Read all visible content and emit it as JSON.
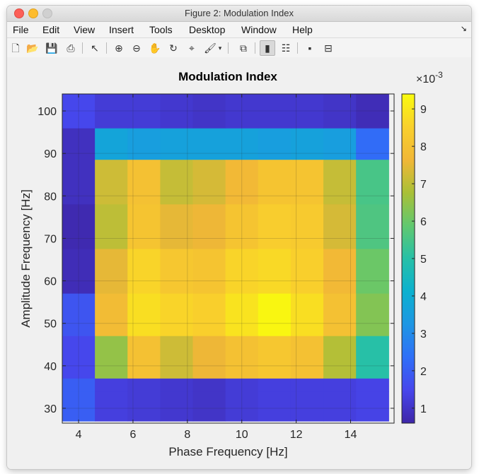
{
  "window": {
    "title": "Figure 2: Modulation Index"
  },
  "menu": {
    "items": [
      "File",
      "Edit",
      "View",
      "Insert",
      "Tools",
      "Desktop",
      "Window",
      "Help"
    ]
  },
  "toolbar": {
    "icons": [
      "new-figure-icon",
      "open-folder-icon",
      "save-icon",
      "print-icon",
      "pointer-icon",
      "zoom-in-icon",
      "zoom-out-icon",
      "pan-hand-icon",
      "rotate-3d-icon",
      "data-cursor-icon",
      "brush-icon",
      "brush-dropdown-icon",
      "link-plot-icon",
      "colorbar-icon",
      "legend-icon",
      "hide-plot-tools-icon",
      "show-plot-tools-icon"
    ]
  },
  "chart_data": {
    "type": "heatmap",
    "title": "Modulation Index",
    "xlabel": "Phase Frequency [Hz]",
    "ylabel": "Amplitude Frequency [Hz]",
    "x_centers": [
      4,
      5.2,
      6.4,
      7.6,
      8.8,
      10,
      11.2,
      12.4,
      13.6,
      14.8
    ],
    "x_cell_width": 1.2,
    "y_centers": [
      102,
      92,
      82,
      72,
      62,
      52,
      42,
      32
    ],
    "y_cell_height": 10,
    "y_row_edges": [
      [
        97,
        104
      ],
      [
        88.5,
        96
      ],
      [
        78,
        88.5
      ],
      [
        67.5,
        78
      ],
      [
        57,
        67.5
      ],
      [
        47,
        57
      ],
      [
        37,
        47
      ],
      [
        27,
        34
      ]
    ],
    "xlim": [
      3.4,
      15.6
    ],
    "ylim": [
      26.5,
      104
    ],
    "xticks": [
      4,
      6,
      8,
      10,
      12,
      14
    ],
    "yticks": [
      30,
      40,
      50,
      60,
      70,
      80,
      90,
      100
    ],
    "grid": true,
    "colormap": "parula",
    "clim": [
      0.6,
      9.4
    ],
    "color_scale_label": "×10",
    "color_scale_exponent": "-3",
    "colorbar_ticks": [
      1,
      2,
      3,
      4,
      5,
      6,
      7,
      8,
      9
    ],
    "rows_top_to_bottom": [
      [
        1.5,
        1.2,
        1.2,
        1.1,
        1.0,
        1.1,
        1.1,
        1.1,
        1.0,
        0.8
      ],
      [
        0.9,
        3.7,
        3.5,
        3.6,
        3.6,
        3.6,
        3.5,
        3.6,
        3.5,
        2.3
      ],
      [
        0.9,
        7.2,
        8.0,
        7.1,
        7.3,
        7.7,
        8.1,
        8.1,
        7.1,
        5.5
      ],
      [
        0.7,
        7.0,
        8.1,
        7.5,
        7.6,
        8.1,
        8.4,
        8.3,
        7.3,
        5.6
      ],
      [
        0.8,
        7.5,
        8.6,
        8.2,
        8.1,
        8.6,
        8.7,
        8.5,
        7.7,
        6.0
      ],
      [
        1.8,
        7.8,
        8.8,
        8.6,
        8.5,
        8.9,
        9.3,
        8.8,
        8.0,
        6.3
      ],
      [
        1.5,
        6.5,
        8.0,
        7.2,
        7.6,
        8.0,
        8.2,
        8.0,
        6.9,
        5.0
      ],
      [
        2.0,
        1.3,
        1.2,
        1.1,
        1.0,
        1.2,
        1.3,
        1.3,
        1.3,
        1.4
      ]
    ]
  }
}
